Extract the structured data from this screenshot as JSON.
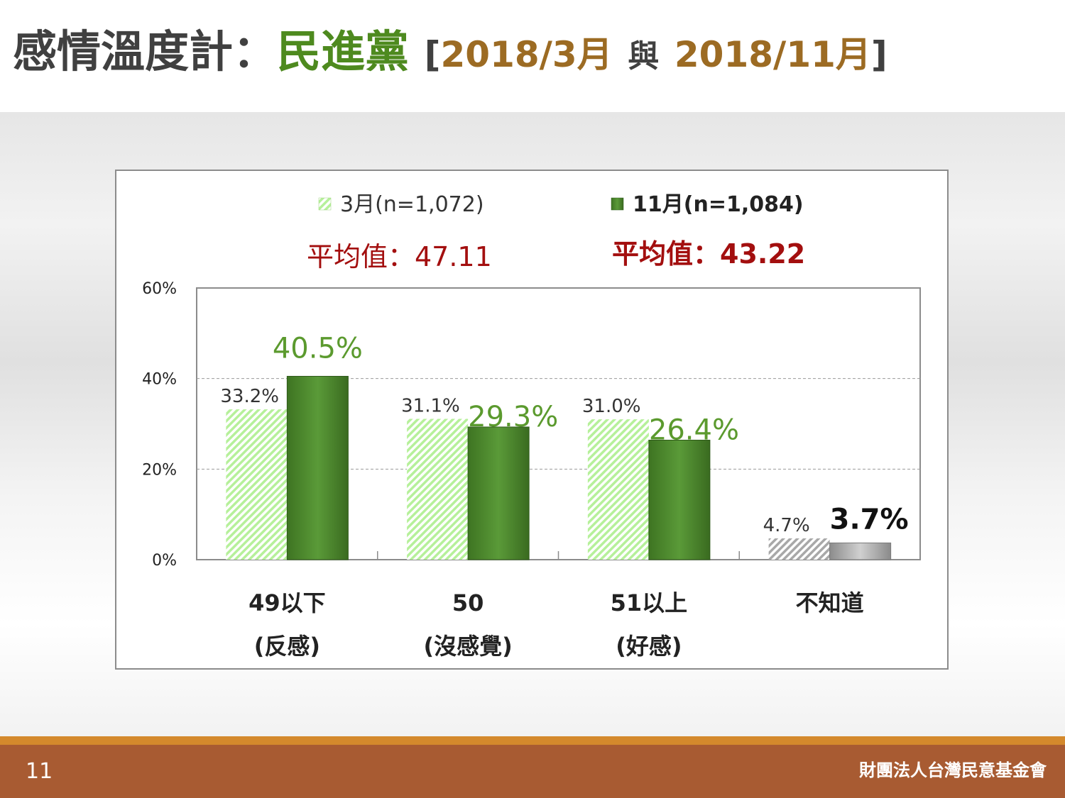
{
  "slide": {
    "title_main": "感情溫度計：",
    "title_party": "民進黨",
    "bracket_open": "[",
    "date_a": "2018/3月",
    "and_word": "與",
    "date_b": "2018/11月",
    "bracket_close": "]",
    "page_number": "11",
    "organization": "財團法人台灣民意基金會"
  },
  "colors": {
    "march_bar": "#b6f09a",
    "november_bar": "#4e8a2e",
    "green_label": "#5b9a2e",
    "red_average": "#a30f0f",
    "gray_bar": "#a8a8a8"
  },
  "chart_data": {
    "type": "bar",
    "categories": [
      {
        "line1": "49以下",
        "line2": "(反感)"
      },
      {
        "line1": "50",
        "line2": "(沒感覺)"
      },
      {
        "line1": "51以上",
        "line2": "(好感)"
      },
      {
        "line1": "不知道",
        "line2": ""
      }
    ],
    "series": [
      {
        "name": "3月(n=1,072)",
        "average_label": "平均值：47.11",
        "values": [
          33.2,
          31.1,
          31.0,
          4.7
        ],
        "value_labels": [
          "33.2%",
          "31.1%",
          "31.0%",
          "4.7%"
        ]
      },
      {
        "name": "11月(n=1,084)",
        "average_label": "平均值：43.22",
        "values": [
          40.5,
          29.3,
          26.4,
          3.7
        ],
        "value_labels": [
          "40.5%",
          "29.3%",
          "26.4%",
          "3.7%"
        ]
      }
    ],
    "y_ticks": [
      "0%",
      "20%",
      "40%",
      "60%"
    ],
    "ylim": [
      0,
      60
    ],
    "grid": true,
    "legend_position": "top-center",
    "title": "",
    "xlabel": "",
    "ylabel": ""
  }
}
